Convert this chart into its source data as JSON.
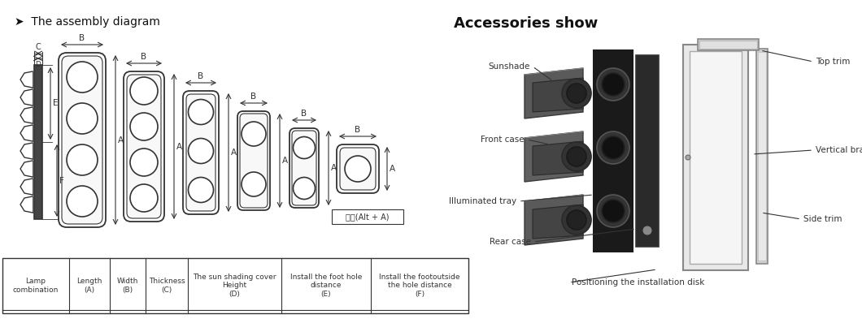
{
  "title_assembly": "➤  The assembly diagram",
  "title_accessories": "Accessories show",
  "bg_color": "#ffffff",
  "line_color": "#333333",
  "table_headers": [
    "Lamp\ncombination",
    "Length\n(A)",
    "Width\n(B)",
    "Thickness\n(C)",
    "The sun shading cover\nHeight\n(D)",
    "Install the foot hole\ndistance\n(E)",
    "Install the footoutside\nthe hole distance\n(F)"
  ],
  "annotation_note": "截図(Alt + A)"
}
